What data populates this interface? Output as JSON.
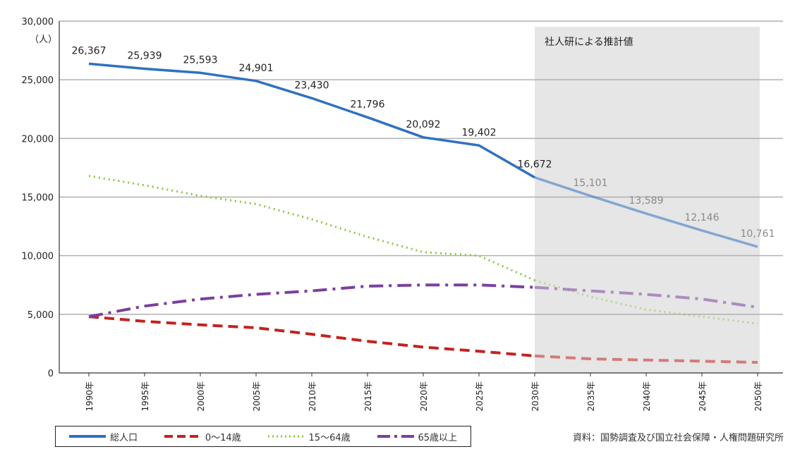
{
  "chart_data": {
    "type": "line",
    "unit_label": "（人）",
    "x": [
      "1990年",
      "1995年",
      "2000年",
      "2005年",
      "2010年",
      "2015年",
      "2020年",
      "2025年",
      "2030年",
      "2035年",
      "2040年",
      "2045年",
      "2050年"
    ],
    "ylim": [
      0,
      30000
    ],
    "yticks": [
      "0",
      "5,000",
      "10,000",
      "15,000",
      "20,000",
      "25,000",
      "30,000"
    ],
    "grid": true,
    "projection": {
      "from": "2030年",
      "to": "2050年",
      "label": "社人研による推計値",
      "color": "#e6e6e6"
    },
    "series": [
      {
        "name": "総人口",
        "color": "#2f72bf",
        "dash": "solid",
        "values": [
          26367,
          25939,
          25593,
          24901,
          23430,
          21796,
          20092,
          19402,
          16672,
          15101,
          13589,
          12146,
          10761
        ],
        "labels": [
          "26,367",
          "25,939",
          "25,593",
          "24,901",
          "23,430",
          "21,796",
          "20,092",
          "19,402",
          "16,672",
          "15,101",
          "13,589",
          "12,146",
          "10,761"
        ]
      },
      {
        "name": "0～14歳",
        "color": "#c4221f",
        "dash": "dashed",
        "values": [
          4800,
          4400,
          4100,
          3850,
          3300,
          2700,
          2200,
          1850,
          1450,
          1200,
          1100,
          1000,
          900
        ]
      },
      {
        "name": "15～64歳",
        "color": "#8cc63f",
        "dash": "dotted",
        "values": [
          16800,
          16000,
          15100,
          14400,
          13100,
          11600,
          10300,
          10000,
          7900,
          6500,
          5400,
          4800,
          4200
        ]
      },
      {
        "name": "65歳以上",
        "color": "#7b3fa0",
        "dash": "dashdot",
        "values": [
          4800,
          5700,
          6300,
          6700,
          7000,
          7400,
          7500,
          7500,
          7300,
          7000,
          6700,
          6300,
          5600
        ]
      }
    ]
  },
  "source": "資料：国勢調査及び国立社会保障・人権問題研究所"
}
